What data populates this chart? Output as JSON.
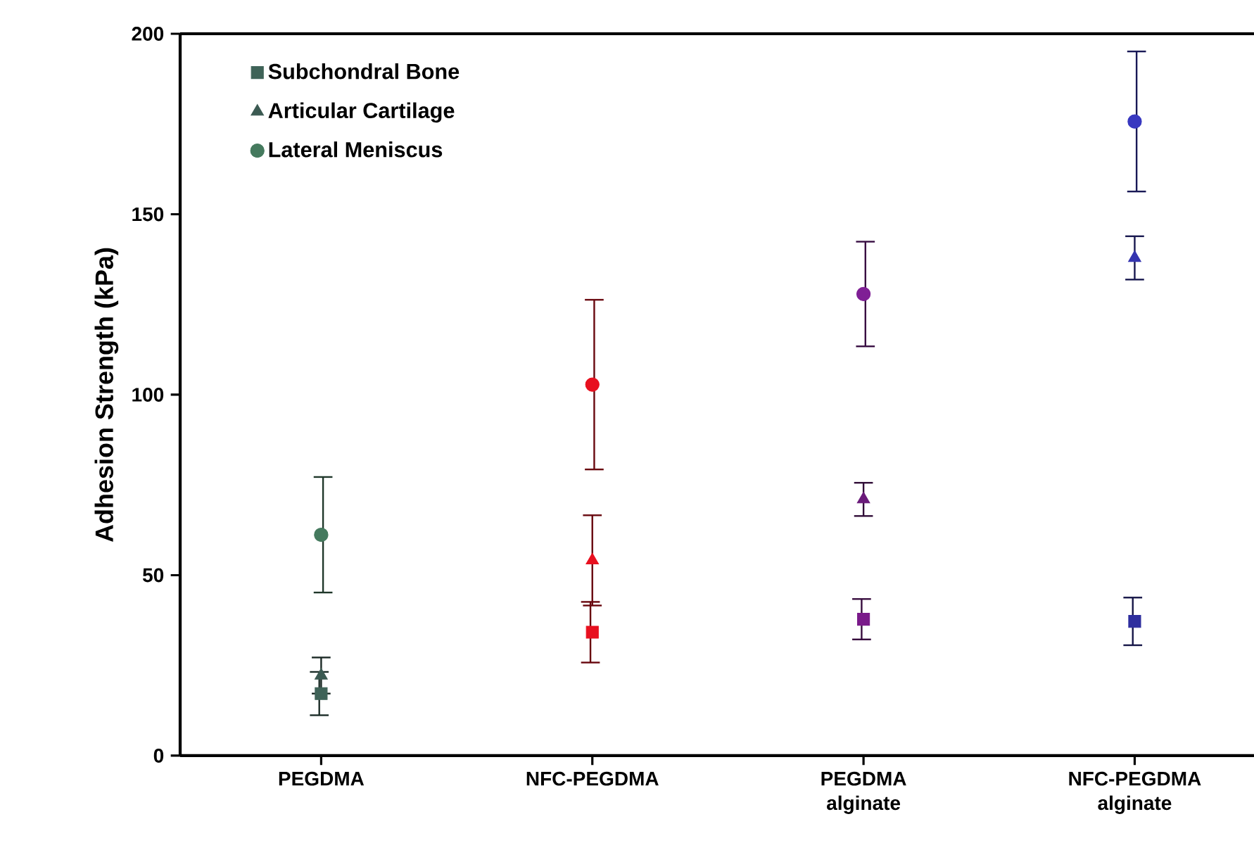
{
  "chart_data": {
    "type": "scatter",
    "ylabel": "Adhesion Strength (kPa)",
    "categories": [
      "PEGDMA",
      "NFC-PEGDMA",
      "PEGDMA alginate",
      "NFC-PEGDMA alginate"
    ],
    "ylim": [
      0,
      200
    ],
    "yticks": [
      0,
      50,
      100,
      150,
      200
    ],
    "grid": false,
    "legend": "top left",
    "series": [
      {
        "name": "Subchondral Bone",
        "marker": "square",
        "colors": [
          "#3f6358",
          "#e8101f",
          "#7a1a8a",
          "#2e2e9e"
        ],
        "values": [
          17.2,
          34.2,
          37.8,
          37.2
        ],
        "errors": [
          6,
          8.4,
          5.6,
          6.6
        ]
      },
      {
        "name": "Articular Cartilage",
        "marker": "triangle",
        "colors": [
          "#3b5a52",
          "#e8101f",
          "#6a1a7a",
          "#3535b0"
        ],
        "values": [
          22.2,
          54.1,
          71.0,
          137.9
        ],
        "errors": [
          5,
          12.5,
          4.6,
          6
        ]
      },
      {
        "name": "Lateral Meniscus",
        "marker": "circle",
        "colors": [
          "#457a5e",
          "#e8101f",
          "#7f1f95",
          "#3838c0"
        ],
        "values": [
          61.2,
          102.8,
          127.9,
          175.7
        ],
        "errors": [
          16,
          23.5,
          14.5,
          19.4
        ]
      }
    ]
  }
}
